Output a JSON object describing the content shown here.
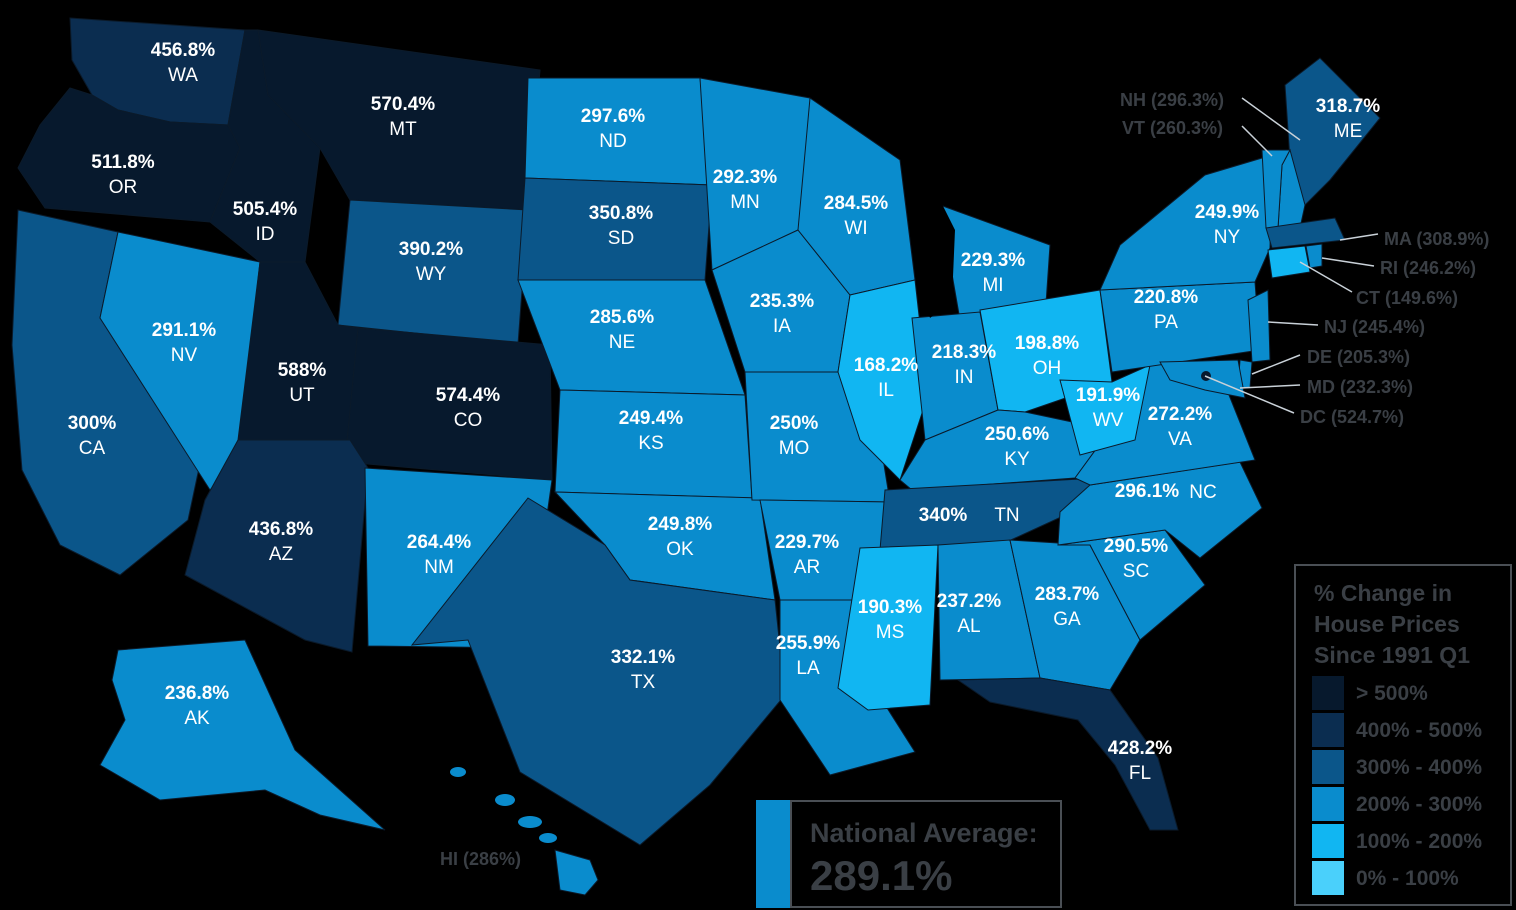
{
  "map": {
    "colors": {
      "over_500": "#07192d",
      "400_500": "#0b2d50",
      "300_400": "#0b568a",
      "200_300": "#0a8ccd",
      "100_200": "#11b6f2",
      "0_100": "#4ad0fb"
    },
    "states": [
      {
        "abbr": "WA",
        "value": "456.8%",
        "bucket": "400_500"
      },
      {
        "abbr": "OR",
        "value": "511.8%",
        "bucket": "over_500"
      },
      {
        "abbr": "CA",
        "value": "300%",
        "bucket": "300_400"
      },
      {
        "abbr": "NV",
        "value": "291.1%",
        "bucket": "200_300"
      },
      {
        "abbr": "ID",
        "value": "505.4%",
        "bucket": "over_500"
      },
      {
        "abbr": "MT",
        "value": "570.4%",
        "bucket": "over_500"
      },
      {
        "abbr": "WY",
        "value": "390.2%",
        "bucket": "300_400"
      },
      {
        "abbr": "UT",
        "value": "588%",
        "bucket": "over_500"
      },
      {
        "abbr": "CO",
        "value": "574.4%",
        "bucket": "over_500"
      },
      {
        "abbr": "AZ",
        "value": "436.8%",
        "bucket": "400_500"
      },
      {
        "abbr": "NM",
        "value": "264.4%",
        "bucket": "200_300"
      },
      {
        "abbr": "ND",
        "value": "297.6%",
        "bucket": "200_300"
      },
      {
        "abbr": "SD",
        "value": "350.8%",
        "bucket": "300_400"
      },
      {
        "abbr": "NE",
        "value": "285.6%",
        "bucket": "200_300"
      },
      {
        "abbr": "KS",
        "value": "249.4%",
        "bucket": "200_300"
      },
      {
        "abbr": "OK",
        "value": "249.8%",
        "bucket": "200_300"
      },
      {
        "abbr": "TX",
        "value": "332.1%",
        "bucket": "300_400"
      },
      {
        "abbr": "MN",
        "value": "292.3%",
        "bucket": "200_300"
      },
      {
        "abbr": "IA",
        "value": "235.3%",
        "bucket": "200_300"
      },
      {
        "abbr": "MO",
        "value": "250%",
        "bucket": "200_300"
      },
      {
        "abbr": "AR",
        "value": "229.7%",
        "bucket": "200_300"
      },
      {
        "abbr": "LA",
        "value": "255.9%",
        "bucket": "200_300"
      },
      {
        "abbr": "WI",
        "value": "284.5%",
        "bucket": "200_300"
      },
      {
        "abbr": "IL",
        "value": "168.2%",
        "bucket": "100_200"
      },
      {
        "abbr": "MI",
        "value": "229.3%",
        "bucket": "200_300"
      },
      {
        "abbr": "IN",
        "value": "218.3%",
        "bucket": "200_300"
      },
      {
        "abbr": "OH",
        "value": "198.8%",
        "bucket": "100_200"
      },
      {
        "abbr": "KY",
        "value": "250.6%",
        "bucket": "200_300"
      },
      {
        "abbr": "TN",
        "value": "340%",
        "bucket": "300_400"
      },
      {
        "abbr": "MS",
        "value": "190.3%",
        "bucket": "100_200"
      },
      {
        "abbr": "AL",
        "value": "237.2%",
        "bucket": "200_300"
      },
      {
        "abbr": "GA",
        "value": "283.7%",
        "bucket": "200_300"
      },
      {
        "abbr": "FL",
        "value": "428.2%",
        "bucket": "400_500"
      },
      {
        "abbr": "SC",
        "value": "290.5%",
        "bucket": "200_300"
      },
      {
        "abbr": "NC",
        "value": "296.1%",
        "bucket": "200_300"
      },
      {
        "abbr": "VA",
        "value": "272.2%",
        "bucket": "200_300"
      },
      {
        "abbr": "WV",
        "value": "191.9%",
        "bucket": "100_200"
      },
      {
        "abbr": "PA",
        "value": "220.8%",
        "bucket": "200_300"
      },
      {
        "abbr": "NY",
        "value": "249.9%",
        "bucket": "200_300"
      },
      {
        "abbr": "ME",
        "value": "318.7%",
        "bucket": "300_400"
      },
      {
        "abbr": "AK",
        "value": "236.8%",
        "bucket": "200_300"
      }
    ],
    "callouts": [
      {
        "abbr": "NH",
        "value": "296.3%",
        "text": "NH (296.3%)"
      },
      {
        "abbr": "VT",
        "value": "260.3%",
        "text": "VT (260.3%)"
      },
      {
        "abbr": "MA",
        "value": "308.9%",
        "text": "MA (308.9%)"
      },
      {
        "abbr": "RI",
        "value": "246.2%",
        "text": "RI (246.2%)"
      },
      {
        "abbr": "CT",
        "value": "149.6%",
        "text": "CT (149.6%)"
      },
      {
        "abbr": "NJ",
        "value": "245.4%",
        "text": "NJ  (245.4%)"
      },
      {
        "abbr": "DE",
        "value": "205.3%",
        "text": "DE (205.3%)"
      },
      {
        "abbr": "MD",
        "value": "232.3%",
        "text": "MD (232.3%)"
      },
      {
        "abbr": "DC",
        "value": "524.7%",
        "text": "DC (524.7%)"
      },
      {
        "abbr": "HI",
        "value": "286%",
        "text": "HI (286%)"
      }
    ]
  },
  "legend": {
    "title": "% Change in House Prices Since 1991 Q1",
    "items": [
      {
        "label": "> 500%",
        "color": "#07192d"
      },
      {
        "label": "400% - 500%",
        "color": "#0b2d50"
      },
      {
        "label": "300% - 400%",
        "color": "#0b568a"
      },
      {
        "label": "200% - 300%",
        "color": "#0a8ccd"
      },
      {
        "label": "100% - 200%",
        "color": "#11b6f2"
      },
      {
        "label": "0% - 100%",
        "color": "#4ad0fb"
      }
    ]
  },
  "national_average": {
    "label": "National Average:",
    "value": "289.1%"
  }
}
